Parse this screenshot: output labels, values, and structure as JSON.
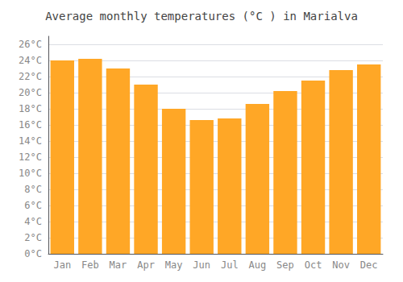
{
  "chart_data": {
    "type": "bar",
    "title": "Average monthly temperatures (°C ) in Marialva",
    "categories": [
      "Jan",
      "Feb",
      "Mar",
      "Apr",
      "May",
      "Jun",
      "Jul",
      "Aug",
      "Sep",
      "Oct",
      "Nov",
      "Dec"
    ],
    "values": [
      24.0,
      24.2,
      23.0,
      21.0,
      18.0,
      16.6,
      16.8,
      18.6,
      20.2,
      21.5,
      22.8,
      23.5
    ],
    "color": "#FFA726",
    "ylim": [
      0,
      27
    ],
    "yticks": [
      {
        "value": 0,
        "label": "0°C"
      },
      {
        "value": 2,
        "label": "2°C"
      },
      {
        "value": 4,
        "label": "4°C"
      },
      {
        "value": 6,
        "label": "6°C"
      },
      {
        "value": 8,
        "label": "8°C"
      },
      {
        "value": 10,
        "label": "10°C"
      },
      {
        "value": 12,
        "label": "12°C"
      },
      {
        "value": 14,
        "label": "14°C"
      },
      {
        "value": 16,
        "label": "16°C"
      },
      {
        "value": 18,
        "label": "18°C"
      },
      {
        "value": 20,
        "label": "20°C"
      },
      {
        "value": 22,
        "label": "22°C"
      },
      {
        "value": 24,
        "label": "24°C"
      },
      {
        "value": 26,
        "label": "26°C"
      }
    ],
    "grid": true
  }
}
